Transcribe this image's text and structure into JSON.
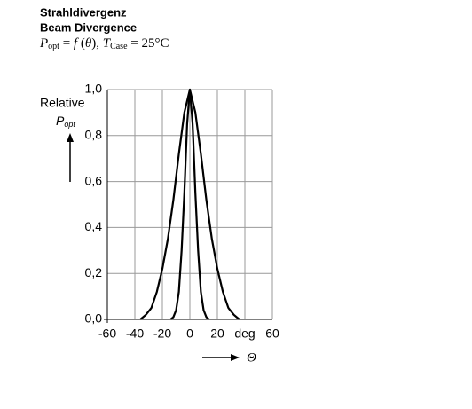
{
  "chart_data": {
    "type": "line",
    "title": [
      "Strahldivergenz",
      "Beam Divergence"
    ],
    "subtitle": [
      "P",
      "opt",
      " = ",
      "f",
      " (",
      "θ",
      "), ",
      "T",
      "Case",
      " = 25°C"
    ],
    "ylabel": [
      "Relative",
      "P",
      "opt"
    ],
    "xlabel": "Θ",
    "xlim": [
      -60,
      60
    ],
    "xticks": [
      -60,
      -40,
      -20,
      0,
      20,
      {
        "value": 40,
        "label": "deg"
      },
      60
    ],
    "ylim": [
      0,
      1
    ],
    "yticks": [
      {
        "value": 0,
        "label": "0,0"
      },
      {
        "value": 0.2,
        "label": "0,2"
      },
      {
        "value": 0.4,
        "label": "0,4"
      },
      {
        "value": 0.6,
        "label": "0,6"
      },
      {
        "value": 0.8,
        "label": "0,8"
      },
      {
        "value": 1,
        "label": "1,0"
      }
    ],
    "grid": true,
    "series": [
      {
        "color": "#000000",
        "x": [
          -36,
          -32,
          -28,
          -24,
          -20,
          -16,
          -12,
          -8,
          -4,
          0,
          4,
          8,
          12,
          16,
          20,
          24,
          28,
          32,
          36
        ],
        "values": [
          0,
          0.02,
          0.05,
          0.12,
          0.22,
          0.35,
          0.52,
          0.72,
          0.9,
          1.0,
          0.9,
          0.72,
          0.52,
          0.35,
          0.22,
          0.12,
          0.05,
          0.02,
          0
        ]
      },
      {
        "color": "#000000",
        "x": [
          -14,
          -12,
          -10,
          -8,
          -6,
          -4,
          -2,
          0,
          2,
          4,
          6,
          8,
          10,
          12,
          14
        ],
        "values": [
          0,
          0.01,
          0.04,
          0.12,
          0.3,
          0.55,
          0.85,
          1.0,
          0.85,
          0.55,
          0.3,
          0.12,
          0.04,
          0.01,
          0
        ]
      }
    ]
  }
}
